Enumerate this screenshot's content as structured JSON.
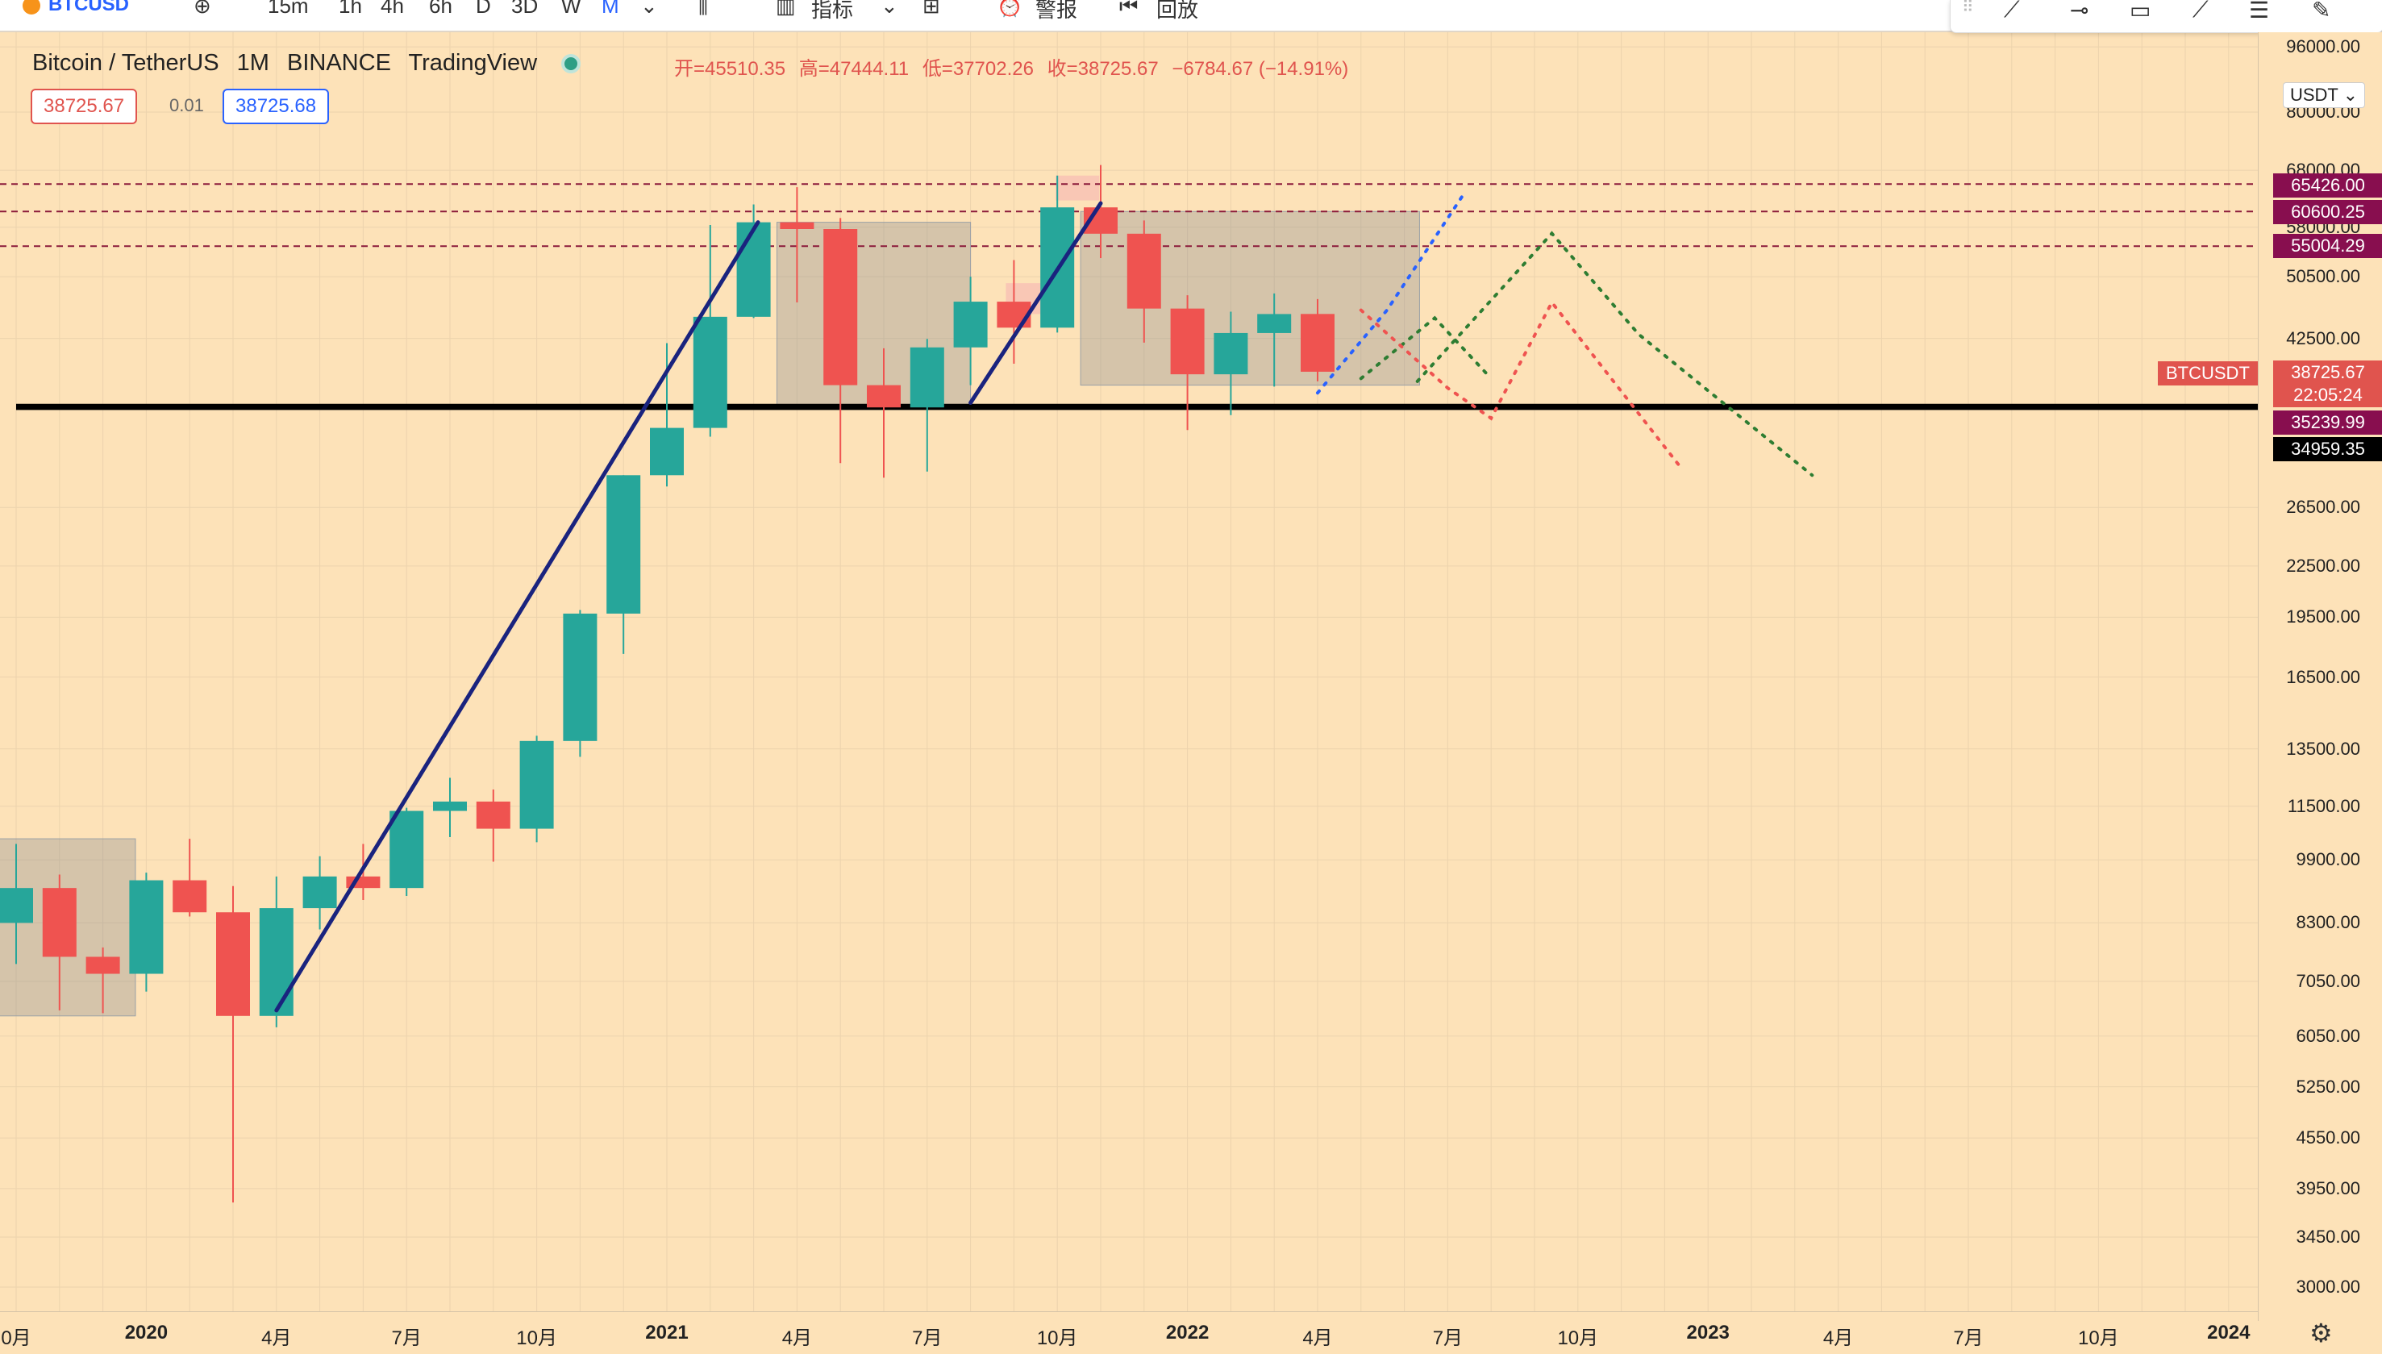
{
  "toolbar": {
    "symbol": "BTCUSD",
    "add_icon": "plus-circle-icon",
    "timeframes": [
      "15m",
      "1h",
      "4h",
      "6h",
      "D",
      "3D",
      "W",
      "M"
    ],
    "active_timeframe": "M",
    "indicators_label": "指标",
    "alert_label": "警报",
    "replay_label": "回放"
  },
  "legend": {
    "title": "Bitcoin / TetherUS",
    "interval": "1M",
    "exchange": "BINANCE",
    "source": "TradingView",
    "open": "开=45510.35",
    "high": "高=47444.11",
    "low": "低=37702.26",
    "close": "收=38725.67",
    "change": "−6784.67 (−14.91%)",
    "sell_price": "38725.67",
    "spread": "0.01",
    "buy_price": "38725.68"
  },
  "axis": {
    "currency": "USDT",
    "ticks": [
      "96000.00",
      "80000.00",
      "68000.00",
      "58000.00",
      "50500.00",
      "42500.00",
      "26500.00",
      "22500.00",
      "19500.00",
      "16500.00",
      "13500.00",
      "11500.00",
      "9900.00",
      "8300.00",
      "7050.00",
      "6050.00",
      "5250.00",
      "4550.00",
      "3950.00",
      "3450.00",
      "3000.00"
    ],
    "labels": [
      {
        "text": "65426.00",
        "color": "#880e4f"
      },
      {
        "text": "60600.25",
        "color": "#880e4f"
      },
      {
        "text": "55004.29",
        "color": "#880e4f"
      },
      {
        "text": "38725.67",
        "color": "#e0544e"
      },
      {
        "text": "22:05:24",
        "color": "#e0544e"
      },
      {
        "text": "35239.99",
        "color": "#880e4f"
      },
      {
        "text": "34959.35",
        "color": "#000000"
      }
    ],
    "symbol_tag": "BTCUSDT"
  },
  "xaxis": {
    "labels": [
      {
        "text": "0月",
        "bold": false
      },
      {
        "text": "2020",
        "bold": true
      },
      {
        "text": "4月",
        "bold": false
      },
      {
        "text": "7月",
        "bold": false
      },
      {
        "text": "10月",
        "bold": false
      },
      {
        "text": "2021",
        "bold": true
      },
      {
        "text": "4月",
        "bold": false
      },
      {
        "text": "7月",
        "bold": false
      },
      {
        "text": "10月",
        "bold": false
      },
      {
        "text": "2022",
        "bold": true
      },
      {
        "text": "4月",
        "bold": false
      },
      {
        "text": "7月",
        "bold": false
      },
      {
        "text": "10月",
        "bold": false
      },
      {
        "text": "2023",
        "bold": true
      },
      {
        "text": "4月",
        "bold": false
      },
      {
        "text": "7月",
        "bold": false
      },
      {
        "text": "10月",
        "bold": false
      },
      {
        "text": "2024",
        "bold": true
      }
    ]
  },
  "chart_data": {
    "type": "candlestick",
    "title": "Bitcoin / TetherUS",
    "scale": "log",
    "ylim": [
      3000,
      96000
    ],
    "series": [
      {
        "month": "2019-10",
        "open": 8300,
        "high": 10350,
        "low": 7400,
        "close": 9150
      },
      {
        "month": "2019-11",
        "open": 9150,
        "high": 9500,
        "low": 6500,
        "close": 7550
      },
      {
        "month": "2019-12",
        "open": 7550,
        "high": 7750,
        "low": 6450,
        "close": 7200
      },
      {
        "month": "2020-01",
        "open": 7200,
        "high": 9550,
        "low": 6850,
        "close": 9350
      },
      {
        "month": "2020-02",
        "open": 9350,
        "high": 10500,
        "low": 8450,
        "close": 8550
      },
      {
        "month": "2020-03",
        "open": 8550,
        "high": 9200,
        "low": 3800,
        "close": 6400
      },
      {
        "month": "2020-04",
        "open": 6400,
        "high": 9450,
        "low": 6200,
        "close": 8650
      },
      {
        "month": "2020-05",
        "open": 8650,
        "high": 10000,
        "low": 8150,
        "close": 9450
      },
      {
        "month": "2020-06",
        "open": 9450,
        "high": 10350,
        "low": 8850,
        "close": 9150
      },
      {
        "month": "2020-07",
        "open": 9150,
        "high": 11450,
        "low": 8950,
        "close": 11350
      },
      {
        "month": "2020-08",
        "open": 11350,
        "high": 12450,
        "low": 10550,
        "close": 11650
      },
      {
        "month": "2020-09",
        "open": 11650,
        "high": 12050,
        "low": 9850,
        "close": 10800
      },
      {
        "month": "2020-10",
        "open": 10800,
        "high": 14000,
        "low": 10400,
        "close": 13800
      },
      {
        "month": "2020-11",
        "open": 13800,
        "high": 19900,
        "low": 13200,
        "close": 19700
      },
      {
        "month": "2020-12",
        "open": 19700,
        "high": 29000,
        "low": 17600,
        "close": 29000
      },
      {
        "month": "2021-01",
        "open": 29000,
        "high": 41950,
        "low": 28100,
        "close": 33100
      },
      {
        "month": "2021-02",
        "open": 33100,
        "high": 58350,
        "low": 32300,
        "close": 45150
      },
      {
        "month": "2021-03",
        "open": 45150,
        "high": 61800,
        "low": 45000,
        "close": 58800
      },
      {
        "month": "2021-04",
        "open": 58800,
        "high": 64850,
        "low": 47000,
        "close": 57700
      },
      {
        "month": "2021-05",
        "open": 57700,
        "high": 59500,
        "low": 30000,
        "close": 37300
      },
      {
        "month": "2021-06",
        "open": 37300,
        "high": 41350,
        "low": 28800,
        "close": 35050
      },
      {
        "month": "2021-07",
        "open": 35050,
        "high": 42450,
        "low": 29300,
        "close": 41450
      },
      {
        "month": "2021-08",
        "open": 41450,
        "high": 50500,
        "low": 37300,
        "close": 47100
      },
      {
        "month": "2021-09",
        "open": 47100,
        "high": 52900,
        "low": 39600,
        "close": 43800
      },
      {
        "month": "2021-10",
        "open": 43800,
        "high": 67000,
        "low": 43200,
        "close": 61300
      },
      {
        "month": "2021-11",
        "open": 61300,
        "high": 69000,
        "low": 53200,
        "close": 56950
      },
      {
        "month": "2021-12",
        "open": 56950,
        "high": 59100,
        "low": 42000,
        "close": 46200
      },
      {
        "month": "2022-01",
        "open": 46200,
        "high": 47950,
        "low": 32900,
        "close": 38450
      },
      {
        "month": "2022-02",
        "open": 38450,
        "high": 45800,
        "low": 34300,
        "close": 43150
      },
      {
        "month": "2022-03",
        "open": 43150,
        "high": 48200,
        "low": 37150,
        "close": 45500
      },
      {
        "month": "2022-04",
        "open": 45510.35,
        "high": 47444.11,
        "low": 37702.26,
        "close": 38725.67
      }
    ],
    "horizontal_levels": [
      65426.0,
      60600.25,
      55004.29,
      35239.99,
      34959.35
    ]
  },
  "colors": {
    "up": "#26a69a",
    "down": "#ef5350",
    "background": "#fde2b8",
    "trendline": "#1a237e"
  }
}
